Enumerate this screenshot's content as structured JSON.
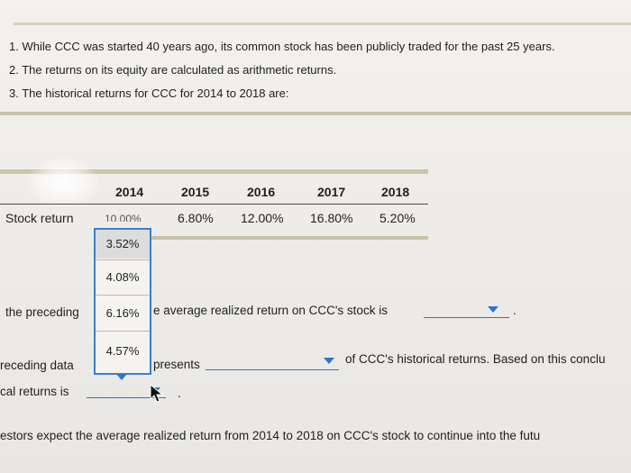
{
  "notes": [
    "1. While CCC was started 40 years ago, its common stock has been publicly traded for the past 25 years.",
    "2. The returns on its equity are calculated as arithmetic returns.",
    "3. The historical returns for CCC for 2014 to 2018 are:"
  ],
  "table": {
    "years": [
      "2014",
      "2015",
      "2016",
      "2017",
      "2018"
    ],
    "row_label": "Stock return",
    "returns": [
      "10.00%",
      "6.80%",
      "12.00%",
      "16.80%",
      "5.20%"
    ]
  },
  "dropdown": {
    "options": [
      "3.52%",
      "4.08%",
      "6.16%",
      "4.57%"
    ]
  },
  "questions": {
    "q1_prefix": "the preceding",
    "q1_suffix": "e average realized return on CCC's stock is",
    "q1_end": ".",
    "q2_prefix": "receding data",
    "q2_middle": "presents",
    "q2_suffix": "of CCC's historical returns. Based on this conclu",
    "q3_prefix": "cal returns is",
    "q3_end": ".",
    "q4_text": "estors expect the average realized return from 2014 to 2018 on CCC's stock to continue into the futu"
  },
  "colors": {
    "accent": "#2b75d0",
    "rule": "#c8c1a4"
  }
}
